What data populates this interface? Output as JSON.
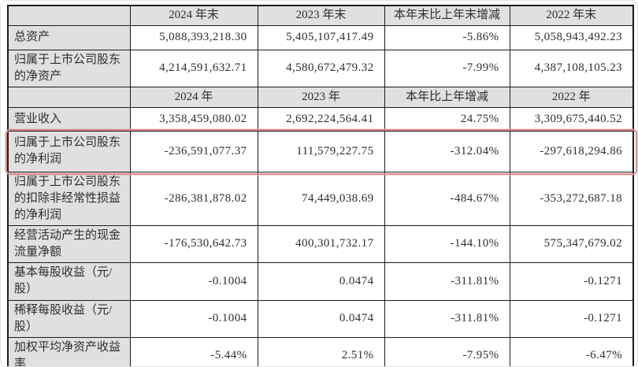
{
  "colors": {
    "header_bg": "#e0e0e0",
    "data_bg": "#ffffff",
    "grid_line": "#1a1a1a",
    "highlight_border": "#dd8a8a",
    "text": "#2e2e2e"
  },
  "table": {
    "header1": [
      "",
      "2024 年末",
      "2023 年末",
      "本年末比上年末增减",
      "2022 年末"
    ],
    "header2": [
      "",
      "2024 年",
      "2023 年",
      "本年比上年增减",
      "2022 年"
    ],
    "section1_rows": [
      {
        "label": "总资产",
        "values": [
          "5,088,393,218.30",
          "5,405,107,417.49",
          "-5.86%",
          "5,058,943,492.23"
        ]
      },
      {
        "label": "归属于上市公司股东的净资产",
        "values": [
          "4,214,591,632.71",
          "4,580,672,479.32",
          "-7.99%",
          "4,387,108,105.23"
        ]
      }
    ],
    "section2_rows": [
      {
        "label": "营业收入",
        "values": [
          "3,358,459,080.02",
          "2,692,224,564.41",
          "24.75%",
          "3,309,675,440.52"
        ]
      },
      {
        "label": "归属于上市公司股东的净利润",
        "highlighted": true,
        "values": [
          "-236,591,077.37",
          "111,579,227.75",
          "-312.04%",
          "-297,618,294.86"
        ]
      },
      {
        "label": "归属于上市公司股东的扣除非经常性损益的净利润",
        "values": [
          "-286,381,878.02",
          "74,449,038.69",
          "-484.67%",
          "-353,272,687.18"
        ]
      },
      {
        "label": "经营活动产生的现金流量净额",
        "values": [
          "-176,530,642.73",
          "400,301,732.17",
          "-144.10%",
          "575,347,679.02"
        ]
      },
      {
        "label": "基本每股收益（元/股）",
        "values": [
          "-0.1004",
          "0.0474",
          "-311.81%",
          "-0.1271"
        ]
      },
      {
        "label": "稀释每股收益（元/股）",
        "values": [
          "-0.1004",
          "0.0474",
          "-311.81%",
          "-0.1271"
        ]
      },
      {
        "label": "加权平均净资产收益率",
        "values": [
          "-5.44%",
          "2.51%",
          "-7.95%",
          "-6.47%"
        ]
      }
    ]
  }
}
